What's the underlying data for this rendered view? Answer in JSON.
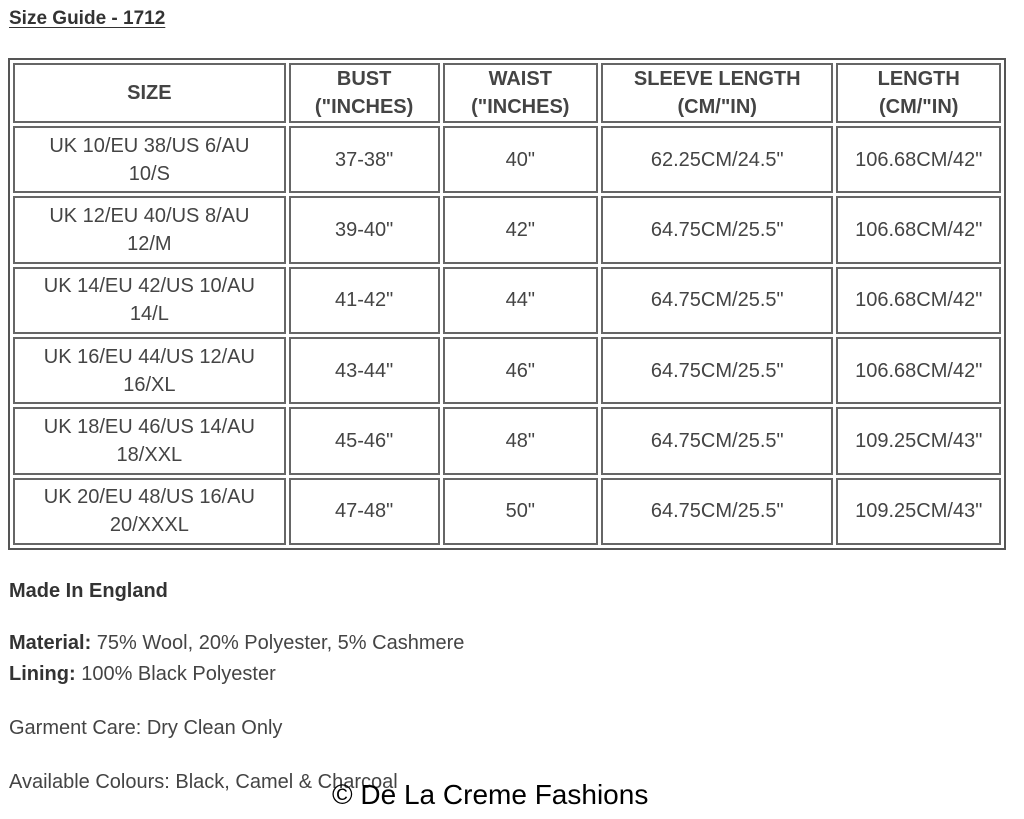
{
  "title": "Size Guide - 1712",
  "table": {
    "headers": [
      [
        "SIZE",
        ""
      ],
      [
        "BUST",
        "(\"INCHES)"
      ],
      [
        "WAIST",
        "(\"INCHES)"
      ],
      [
        "SLEEVE LENGTH",
        "(CM/\"IN)"
      ],
      [
        "LENGTH",
        "(CM/\"IN)"
      ]
    ],
    "rows": [
      [
        [
          "UK 10/EU 38/US 6/AU",
          "10/S"
        ],
        "37-38\"",
        "40\"",
        "62.25CM/24.5\"",
        "106.68CM/42\""
      ],
      [
        [
          "UK 12/EU 40/US 8/AU",
          "12/M"
        ],
        "39-40\"",
        "42\"",
        "64.75CM/25.5\"",
        "106.68CM/42\""
      ],
      [
        [
          "UK 14/EU 42/US 10/AU",
          "14/L"
        ],
        "41-42\"",
        "44\"",
        "64.75CM/25.5\"",
        "106.68CM/42\""
      ],
      [
        [
          "UK 16/EU 44/US 12/AU",
          "16/XL"
        ],
        "43-44\"",
        "46\"",
        "64.75CM/25.5\"",
        "106.68CM/42\""
      ],
      [
        [
          "UK 18/EU 46/US 14/AU",
          "18/XXL"
        ],
        "45-46\"",
        "48\"",
        "64.75CM/25.5\"",
        "109.25CM/43\""
      ],
      [
        [
          "UK 20/EU 48/US 16/AU",
          "20/XXXL"
        ],
        "47-48\"",
        "50\"",
        "64.75CM/25.5\"",
        "109.25CM/43\""
      ]
    ]
  },
  "made_in": "Made In England",
  "material": {
    "label": "Material:",
    "value": " 75% Wool, 20% Polyester, 5% Cashmere"
  },
  "lining": {
    "label": "Lining:",
    "value": " 100% Black Polyester"
  },
  "care": "Garment Care: Dry Clean Only",
  "colours": "Available Colours: Black, Camel & Charcoal",
  "watermark": "© De La Creme Fashions"
}
